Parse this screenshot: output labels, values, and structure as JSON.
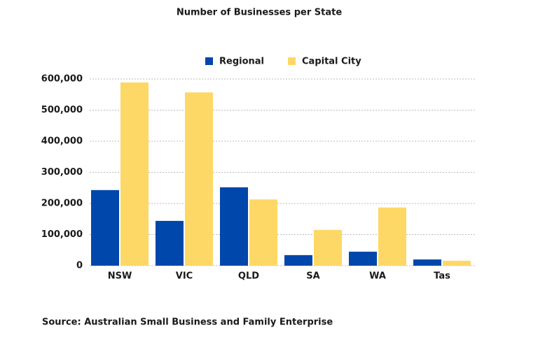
{
  "chart_data": {
    "type": "bar",
    "title": "Number of Businesses per State",
    "categories": [
      "NSW",
      "VIC",
      "QLD",
      "SA",
      "WA",
      "Tas"
    ],
    "series": [
      {
        "name": "Regional",
        "color": "#0047ab",
        "values": [
          243000,
          144000,
          252000,
          34000,
          45000,
          20000
        ]
      },
      {
        "name": "Capital City",
        "color": "#fdd866",
        "values": [
          589000,
          557000,
          213000,
          115000,
          187000,
          16000
        ]
      }
    ],
    "ylim": [
      0,
      600000
    ],
    "yticks": [
      0,
      {
        "value": 100000,
        "label": "100,000"
      },
      {
        "value": 200000,
        "label": "200,000"
      },
      {
        "value": 300000,
        "label": "300,000"
      },
      {
        "value": 400000,
        "label": "400,000"
      },
      {
        "value": 500000,
        "label": "500,000"
      },
      {
        "value": 600000,
        "label": "600,000"
      }
    ],
    "grid": true,
    "source": "Source: Australian Small Business and Family Enterprise"
  }
}
